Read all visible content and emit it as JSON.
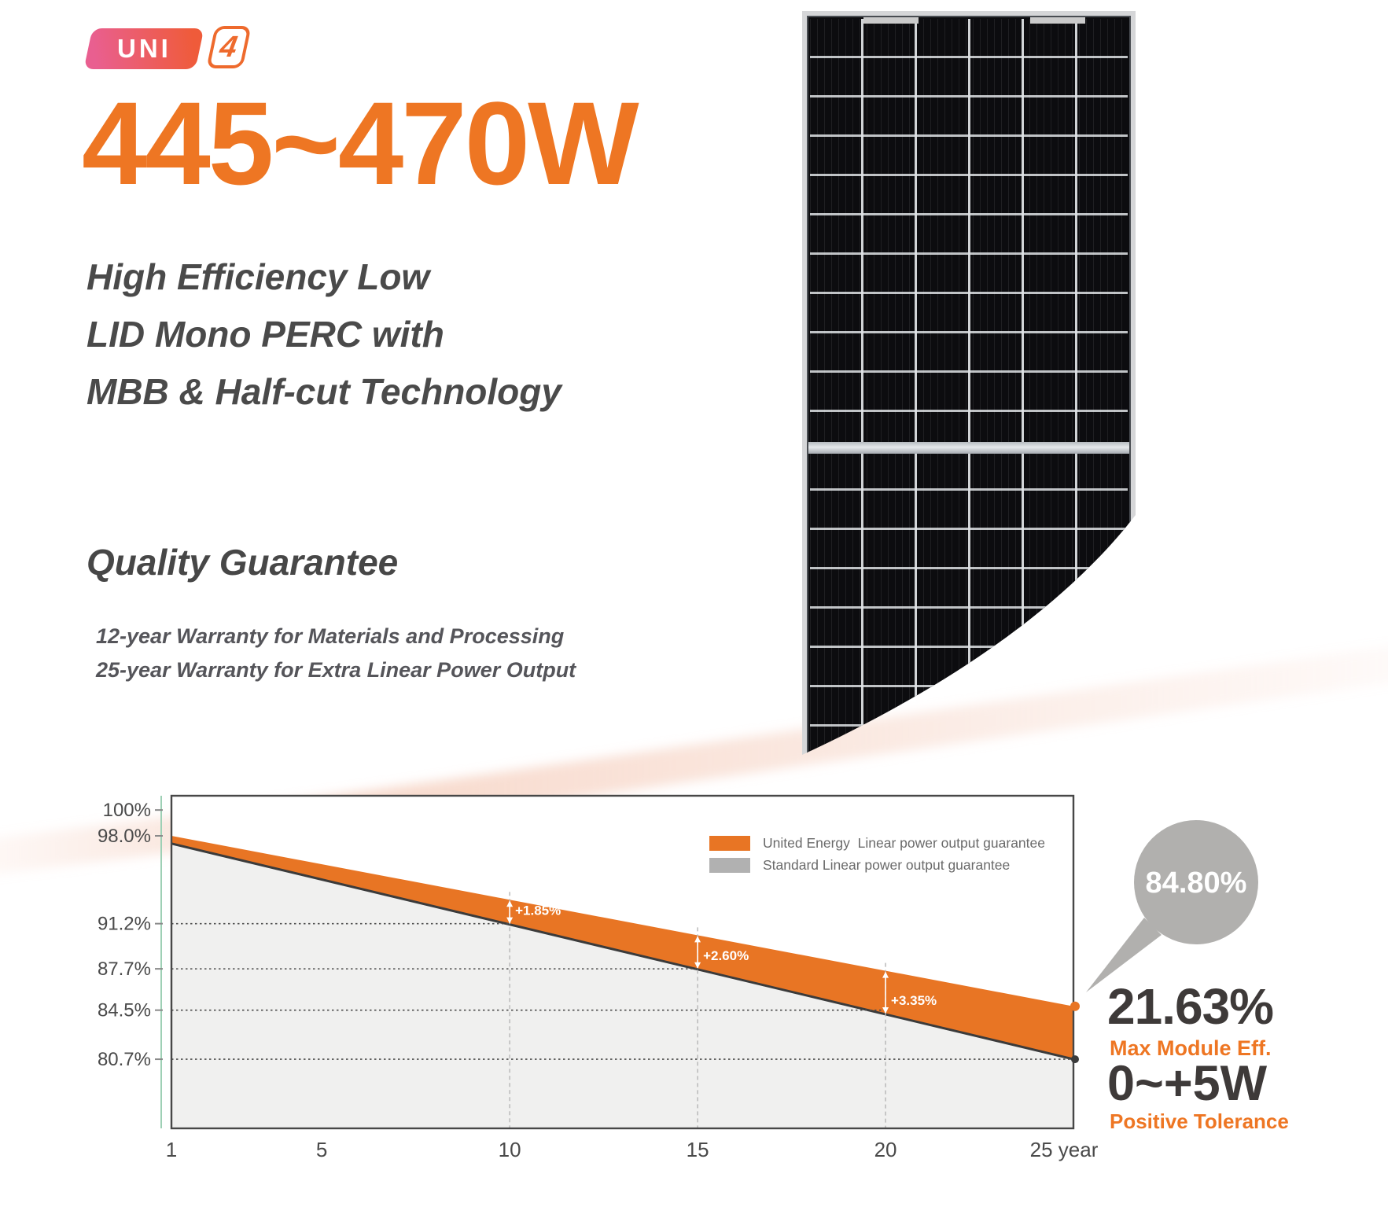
{
  "badge": {
    "brand": "UNI",
    "series": "4"
  },
  "hero": {
    "power_range": "445~470W",
    "heading_line1": "High Efficiency Low",
    "heading_line2": "LID Mono PERC with",
    "heading_line3": "MBB & Half-cut Technology"
  },
  "quality": {
    "title": "Quality Guarantee",
    "item1": "12-year Warranty for Materials and Processing",
    "item2": "25-year Warranty for Extra Linear Power Output"
  },
  "chart_data": {
    "type": "area",
    "x_unit": "year",
    "x_range": [
      1,
      25
    ],
    "series": [
      {
        "name": "United Energy  Linear power output guarantee",
        "color": "#E87524",
        "points": [
          {
            "year": 1,
            "pct": 98.0
          },
          {
            "year": 25,
            "pct": 84.8
          }
        ]
      },
      {
        "name": "Standard Linear power output guarantee",
        "color": "#B1B1B1",
        "line_color": "#3B3B3B",
        "fill_below": "#F0F0EF",
        "points": [
          {
            "year": 1,
            "pct": 97.4
          },
          {
            "year": 25,
            "pct": 80.7
          }
        ]
      }
    ],
    "y_ticks": [
      {
        "label": "100%",
        "pct": 100.0
      },
      {
        "label": "98.0%",
        "pct": 98.0
      },
      {
        "label": "91.2%",
        "pct": 91.2
      },
      {
        "label": "87.7%",
        "pct": 87.7
      },
      {
        "label": "84.5%",
        "pct": 84.5
      },
      {
        "label": "80.7%",
        "pct": 80.7
      }
    ],
    "gridlines": [
      {
        "pct": 91.2,
        "to_year": 10
      },
      {
        "pct": 87.7,
        "to_year": 15
      },
      {
        "pct": 84.5,
        "to_year": 20
      },
      {
        "pct": 80.7,
        "to_year": 25
      }
    ],
    "x_ticks": [
      {
        "label": "1",
        "year": 1
      },
      {
        "label": "5",
        "year": 5
      },
      {
        "label": "10",
        "year": 10
      },
      {
        "label": "15",
        "year": 15
      },
      {
        "label": "20",
        "year": 20
      },
      {
        "label": "25 year",
        "year": 25
      }
    ],
    "annotations": [
      {
        "year": 10,
        "label": "+1.85%"
      },
      {
        "year": 15,
        "label": "+2.60%"
      },
      {
        "year": 20,
        "label": "+3.35%"
      }
    ],
    "callout": {
      "value": "84.80%",
      "color": "#B1B0AE"
    },
    "legend_position": "top-right",
    "axis_color": "#9ED0B5",
    "border_color": "#474747"
  },
  "stats": {
    "efficiency_value": "21.63%",
    "efficiency_label": "Max Module Eff.",
    "tolerance_value": "0~+5W",
    "tolerance_label": "Positive Tolerance"
  },
  "colors": {
    "accent_orange": "#EE7623",
    "dark_text": "#3E3A39",
    "heading_gray": "#4A4A4A",
    "blush": "#F5CDBB"
  }
}
